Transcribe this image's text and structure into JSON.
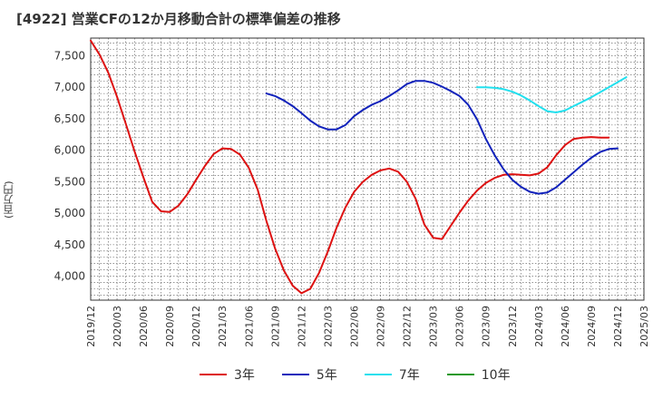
{
  "title": "[4922]  営業CFの12か月移動合計の標準偏差の推移",
  "chart_data": {
    "type": "line",
    "title": "[4922]  営業CFの12か月移動合計の標準偏差の推移",
    "ylabel": "(百万円)",
    "xlabel": "",
    "ylim": [
      3620,
      7780
    ],
    "yticks": [
      4000,
      4500,
      5000,
      5500,
      6000,
      6500,
      7000,
      7500
    ],
    "ytick_labels": [
      "4,000",
      "4,500",
      "5,000",
      "5,500",
      "6,000",
      "6,500",
      "7,000",
      "7,500"
    ],
    "xticks": [
      "2019/12",
      "2020/03",
      "2020/06",
      "2020/09",
      "2020/12",
      "2021/03",
      "2021/06",
      "2021/09",
      "2021/12",
      "2022/03",
      "2022/06",
      "2022/09",
      "2022/12",
      "2023/03",
      "2023/06",
      "2023/09",
      "2023/12",
      "2024/03",
      "2024/06",
      "2024/09",
      "2024/12",
      "2025/03"
    ],
    "grid": true,
    "legend_position": "bottom",
    "series": [
      {
        "name": "3年",
        "color": "#dd1111",
        "start": "2019/12",
        "values": [
          7740,
          7520,
          7230,
          6850,
          6420,
          5980,
          5570,
          5180,
          5030,
          5020,
          5120,
          5300,
          5530,
          5750,
          5940,
          6030,
          6020,
          5930,
          5720,
          5380,
          4880,
          4440,
          4090,
          3850,
          3730,
          3800,
          4050,
          4390,
          4770,
          5090,
          5340,
          5500,
          5610,
          5680,
          5710,
          5660,
          5500,
          5230,
          4820,
          4610,
          4590,
          4800,
          5010,
          5200,
          5360,
          5480,
          5560,
          5610,
          5620,
          5610,
          5600,
          5630,
          5730,
          5920,
          6080,
          6180,
          6200,
          6210,
          6200,
          6200
        ]
      },
      {
        "name": "5年",
        "color": "#1122bb",
        "start": "2021/08",
        "values": [
          6900,
          6860,
          6790,
          6700,
          6590,
          6470,
          6380,
          6330,
          6330,
          6400,
          6540,
          6640,
          6720,
          6780,
          6860,
          6950,
          7050,
          7100,
          7100,
          7070,
          7010,
          6940,
          6860,
          6720,
          6490,
          6180,
          5920,
          5700,
          5530,
          5420,
          5340,
          5310,
          5330,
          5410,
          5530,
          5650,
          5770,
          5880,
          5970,
          6020,
          6030
        ]
      },
      {
        "name": "7年",
        "color": "#22e0ee",
        "start": "2023/08",
        "values": [
          7000,
          7000,
          6990,
          6970,
          6930,
          6870,
          6790,
          6700,
          6620,
          6600,
          6630,
          6700,
          6770,
          6840,
          6920,
          7000,
          7080,
          7160
        ]
      },
      {
        "name": "10年",
        "color": "#229922",
        "start": "",
        "values": []
      }
    ]
  }
}
